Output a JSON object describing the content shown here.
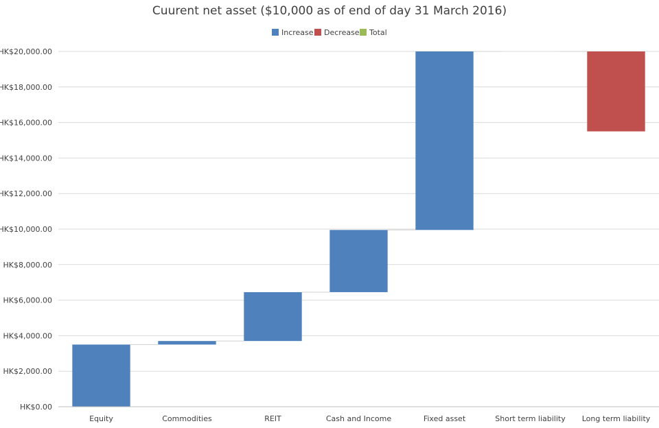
{
  "chart_data": {
    "type": "waterfall",
    "title": "Cuurent net asset  ($10,000 as of end of day 31 March 2016)",
    "legend": {
      "position": "top",
      "items": [
        {
          "label": "Increase",
          "color": "#4f81bd"
        },
        {
          "label": "Decrease",
          "color": "#c0504d"
        },
        {
          "label": "Total",
          "color": "#9bbb59"
        }
      ]
    },
    "y_axis": {
      "min": 0,
      "max": 20000,
      "step": 2000,
      "tick_labels": [
        "HK$0.00",
        "HK$2,000.00",
        "HK$4,000.00",
        "HK$6,000.00",
        "HK$8,000.00",
        "HK$10,000.00",
        "HK$12,000.00",
        "HK$14,000.00",
        "HK$16,000.00",
        "HK$18,000.00",
        "HK$20,000.00"
      ]
    },
    "grid": true,
    "categories": [
      "Equity",
      "Commodities",
      "REIT",
      "Cash and Income",
      "Fixed asset",
      "Short term liability",
      "Long term liability"
    ],
    "bars": [
      {
        "category": "Equity",
        "kind": "Increase",
        "start": 0,
        "end": 3500
      },
      {
        "category": "Commodities",
        "kind": "Increase",
        "start": 3500,
        "end": 3700
      },
      {
        "category": "REIT",
        "kind": "Increase",
        "start": 3700,
        "end": 6450
      },
      {
        "category": "Cash and Income",
        "kind": "Increase",
        "start": 6450,
        "end": 9950
      },
      {
        "category": "Fixed asset",
        "kind": "Increase",
        "start": 9950,
        "end": 20000
      },
      {
        "category": "Short term liability",
        "kind": "Increase",
        "start": 20000,
        "end": 20000
      },
      {
        "category": "Long term liability",
        "kind": "Decrease",
        "start": 20000,
        "end": 15500
      }
    ]
  }
}
